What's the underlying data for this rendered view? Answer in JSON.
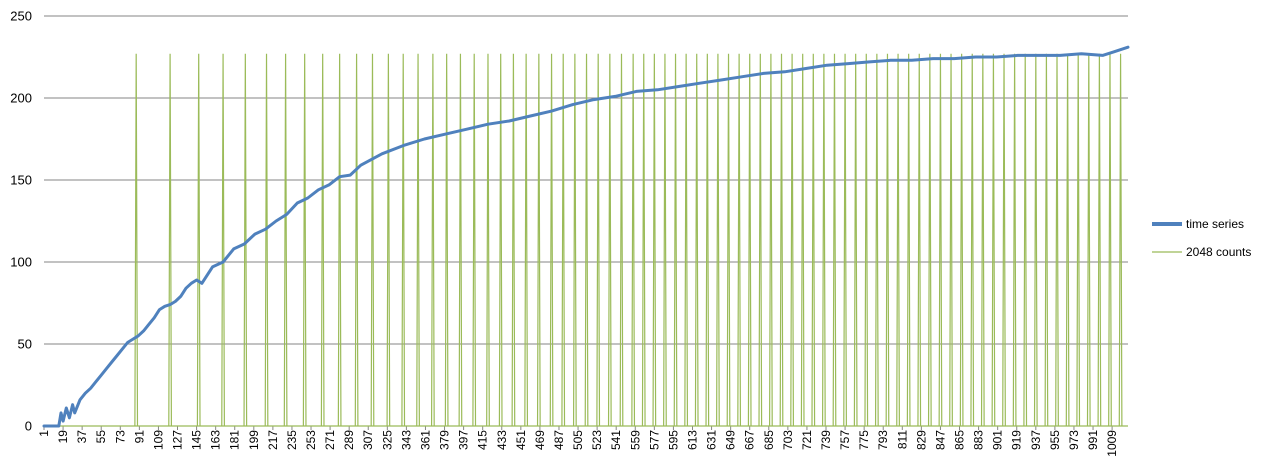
{
  "chart_data": {
    "type": "line",
    "title": "",
    "xlabel": "",
    "ylabel": "",
    "xlim": [
      1,
      1024
    ],
    "ylim": [
      0,
      250
    ],
    "y_ticks": [
      0,
      50,
      100,
      150,
      200,
      250
    ],
    "x_tick_start": 1,
    "x_tick_step": 18,
    "grid": "horizontal",
    "legend_position": "right",
    "series": [
      {
        "name": "time series",
        "color": "#4f81bd",
        "style": "thick line",
        "x": [
          1,
          15,
          17,
          19,
          22,
          25,
          28,
          30,
          35,
          40,
          45,
          50,
          55,
          60,
          65,
          70,
          75,
          80,
          85,
          90,
          95,
          100,
          105,
          110,
          115,
          120,
          125,
          130,
          135,
          140,
          145,
          150,
          160,
          170,
          180,
          190,
          200,
          210,
          220,
          230,
          240,
          250,
          260,
          270,
          280,
          290,
          300,
          320,
          340,
          360,
          380,
          400,
          420,
          440,
          460,
          480,
          500,
          520,
          540,
          560,
          580,
          600,
          620,
          640,
          660,
          680,
          700,
          720,
          740,
          760,
          780,
          800,
          820,
          840,
          860,
          880,
          900,
          920,
          940,
          960,
          980,
          1000,
          1010,
          1024
        ],
        "y": [
          0,
          0,
          8,
          3,
          11,
          5,
          13,
          8,
          16,
          20,
          23,
          27,
          31,
          35,
          39,
          43,
          47,
          51,
          53,
          55,
          58,
          62,
          66,
          71,
          73,
          74,
          76,
          79,
          84,
          87,
          89,
          87,
          97,
          100,
          108,
          111,
          117,
          120,
          125,
          129,
          136,
          139,
          144,
          147,
          152,
          153,
          159,
          166,
          171,
          175,
          178,
          181,
          184,
          186,
          189,
          192,
          196,
          199,
          201,
          204,
          205,
          207,
          209,
          211,
          213,
          215,
          216,
          218,
          220,
          221,
          222,
          223,
          223,
          224,
          224,
          225,
          225,
          226,
          226,
          226,
          227,
          226,
          228,
          231
        ]
      },
      {
        "name": "2048 counts",
        "color": "#9bbb59",
        "style": "thin spikes",
        "spike_height": 227,
        "x": [
          88,
          120,
          147,
          170,
          191,
          211,
          229,
          247,
          264,
          280,
          296,
          311,
          326,
          340,
          354,
          368,
          381,
          394,
          407,
          420,
          432,
          444,
          456,
          468,
          480,
          491,
          502,
          513,
          524,
          535,
          546,
          557,
          567,
          577,
          587,
          597,
          607,
          617,
          627,
          637,
          647,
          657,
          667,
          677,
          687,
          697,
          707,
          717,
          727,
          737,
          747,
          757,
          767,
          777,
          787,
          797,
          807,
          817,
          827,
          837,
          847,
          857,
          867,
          877,
          887,
          897,
          907,
          917,
          927,
          937,
          947,
          957,
          967,
          977,
          987,
          997,
          1007,
          1017
        ]
      }
    ]
  }
}
